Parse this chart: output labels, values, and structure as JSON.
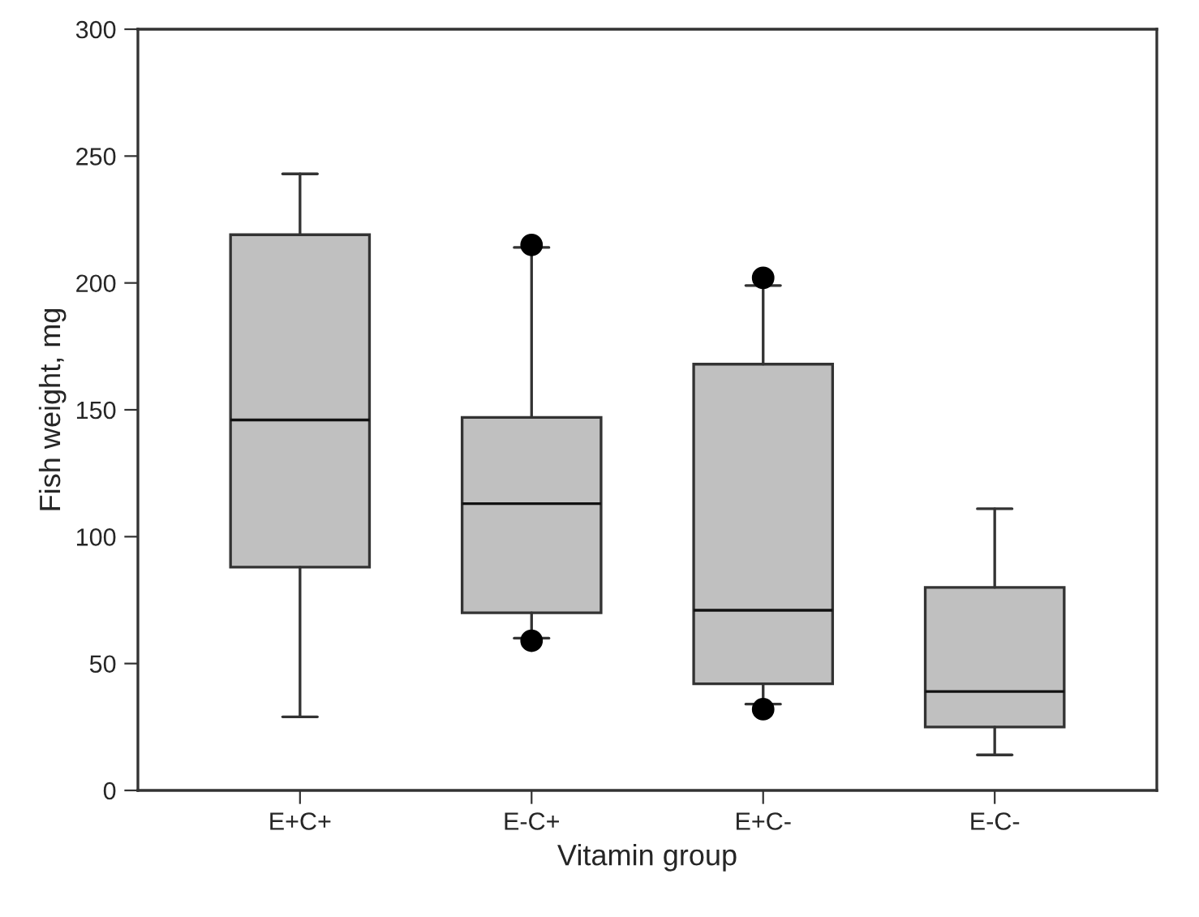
{
  "chart_data": {
    "type": "box",
    "xlabel": "Vitamin group",
    "ylabel": "Fish weight, mg",
    "categories": [
      "E+C+",
      "E-C+",
      "E+C-",
      "E-C-"
    ],
    "series": [
      {
        "color": "#c0c0c0",
        "boxes": [
          {
            "low": 29,
            "q1": 88,
            "median": 146,
            "q3": 219,
            "high": 243
          },
          {
            "low": 60,
            "q1": 70,
            "median": 113,
            "q3": 147,
            "high": 214,
            "outliers": [
              59,
              215
            ]
          },
          {
            "low": 34,
            "q1": 42,
            "median": 71,
            "q3": 168,
            "high": 199,
            "outliers": [
              32,
              202
            ]
          },
          {
            "low": 14,
            "q1": 25,
            "median": 39,
            "q3": 80,
            "high": 111
          }
        ]
      }
    ],
    "ylim": [
      0,
      300
    ],
    "yticks": [
      0,
      50,
      100,
      150,
      200,
      250,
      300
    ],
    "grid": false,
    "legend": false
  }
}
